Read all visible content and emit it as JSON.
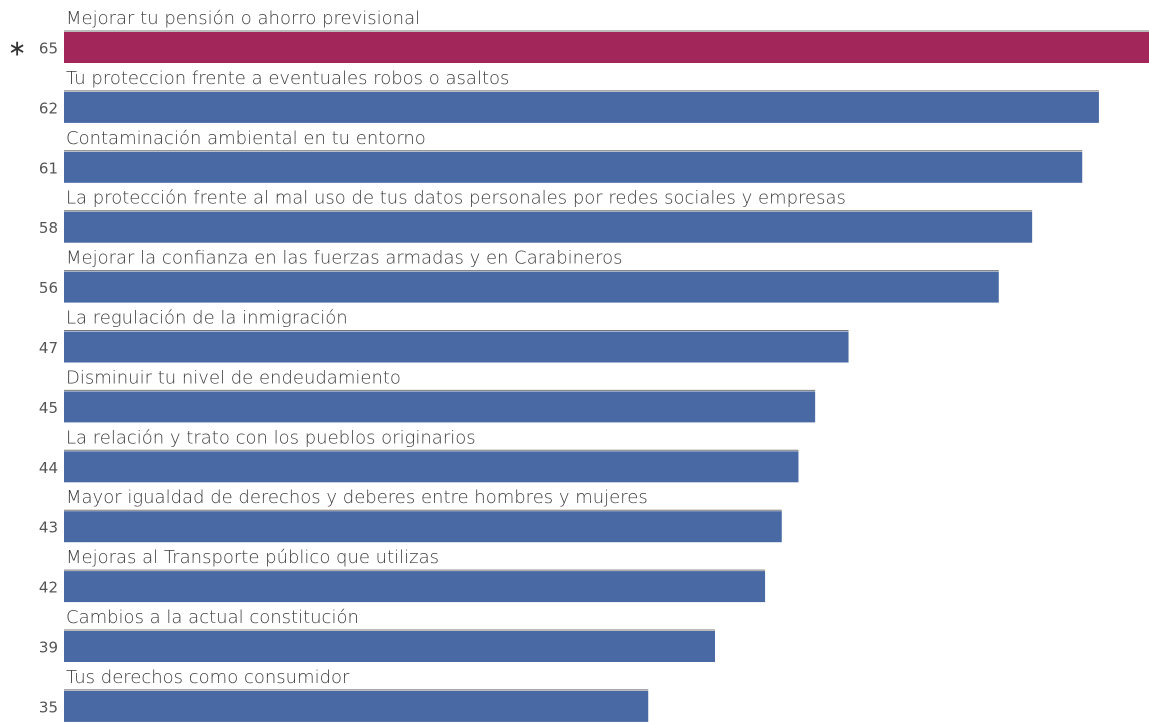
{
  "chart_data": {
    "type": "bar",
    "orientation": "horizontal",
    "categories": [
      "Mejorar tu pensión o ahorro previsional",
      "Tu proteccion frente a eventuales robos o asaltos",
      "Contaminación ambiental en tu entorno",
      "La protección frente al mal uso de tus datos personales por redes sociales y empresas",
      "Mejorar la confianza en las fuerzas armadas y en Carabineros",
      "La regulación de la inmigración",
      "Disminuir tu nivel de endeudamiento",
      "La relación y trato con los pueblos originarios",
      "Mayor igualdad de derechos y deberes entre hombres y mujeres",
      "Mejoras al Transporte público que utilizas",
      "Cambios a la actual constitución",
      "Tus derechos como consumidor"
    ],
    "values": [
      65,
      62,
      61,
      58,
      56,
      47,
      45,
      44,
      43,
      42,
      39,
      35
    ],
    "value_labels": [
      "65",
      "62",
      "61",
      "58",
      "56",
      "47",
      "45",
      "44",
      "43",
      "42",
      "39",
      "35"
    ],
    "highlight_index": 0,
    "highlight_marker": "∗",
    "xlim": [
      0,
      65
    ],
    "title": "",
    "xlabel": "",
    "ylabel": "",
    "grid": false,
    "legend": "none",
    "colors": {
      "bar": "#4869a4",
      "highlight": "#a3265a"
    }
  }
}
